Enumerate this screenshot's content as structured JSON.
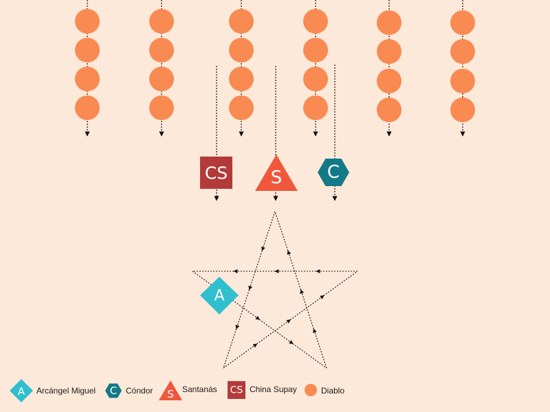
{
  "colors": {
    "background": "#fde9d9",
    "diablo": "#f98a52",
    "arcangel": "#2fbfcf",
    "condor": "#127a86",
    "santanas": "#f0573d",
    "china_supay": "#b43a3a",
    "line": "#111111"
  },
  "symbols": {
    "arcangel_letter": "A",
    "condor_letter": "C",
    "santanas_letter": "S",
    "china_supay_letters": "CS"
  },
  "diablo_columns": 6,
  "diablos_per_column": 4,
  "legend": [
    {
      "key": "arcangel",
      "shape": "diamond",
      "letter": "A",
      "label": "Arcángel Miguel"
    },
    {
      "key": "condor",
      "shape": "hexagon",
      "letter": "C",
      "label": "Cóndor"
    },
    {
      "key": "santanas",
      "shape": "triangle",
      "letter": "S",
      "label": "Santanás"
    },
    {
      "key": "china_supay",
      "shape": "square",
      "letter": "CS",
      "label": "China Supay"
    },
    {
      "key": "diablo",
      "shape": "circle",
      "letter": "",
      "label": "Diablo"
    }
  ]
}
